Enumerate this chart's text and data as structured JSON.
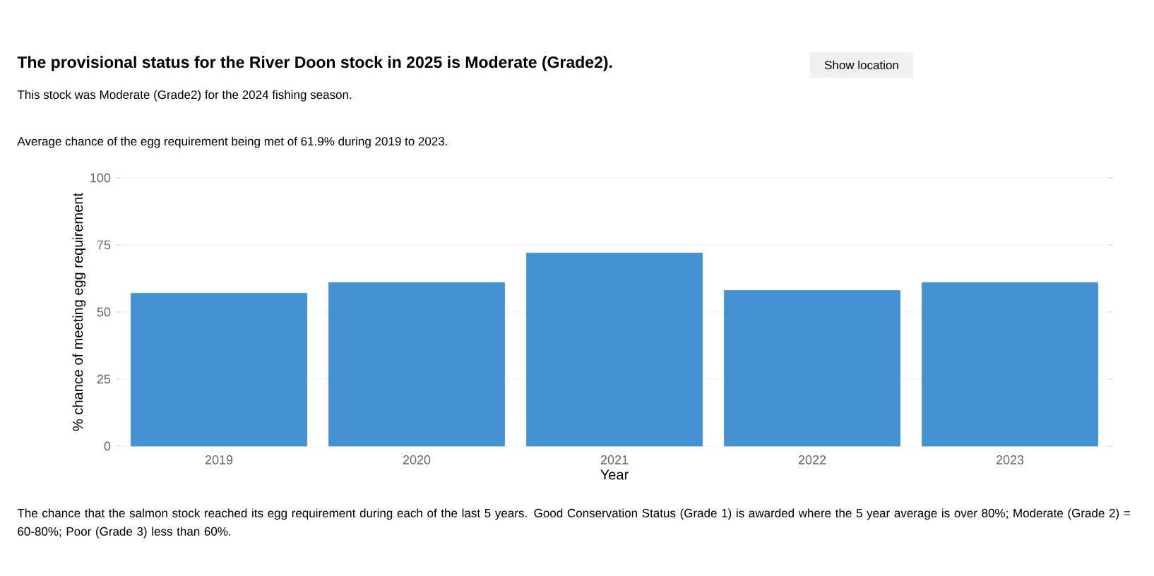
{
  "chart_data": {
    "type": "bar",
    "title": "The provisional status for the River Doon stock in 2025 is Moderate (Grade2).",
    "subtitle": "This stock was Moderate (Grade2) for the 2024 fishing season.",
    "annotations": [
      "Average chance of the egg requirement being met of 61.9% during 2019 to 2023.",
      "Show location",
      "The chance that the salmon stock reached its egg requirement during each of the last 5 years. Good Conservation Status (Grade 1) is awarded where the 5 year average is over 80%; Moderate (Grade 2) = 60-80%; Poor (Grade 3) less than 60%."
    ],
    "xlabel": "Year",
    "ylabel": "% chance of meeting egg requirement",
    "categories": [
      "2019",
      "2020",
      "2021",
      "2022",
      "2023"
    ],
    "values": [
      57,
      61,
      72,
      58,
      61
    ],
    "color": "#4590d0",
    "ylim": [
      0,
      100
    ],
    "yticks": [
      0,
      25,
      50,
      75,
      100
    ],
    "grid": "y"
  }
}
